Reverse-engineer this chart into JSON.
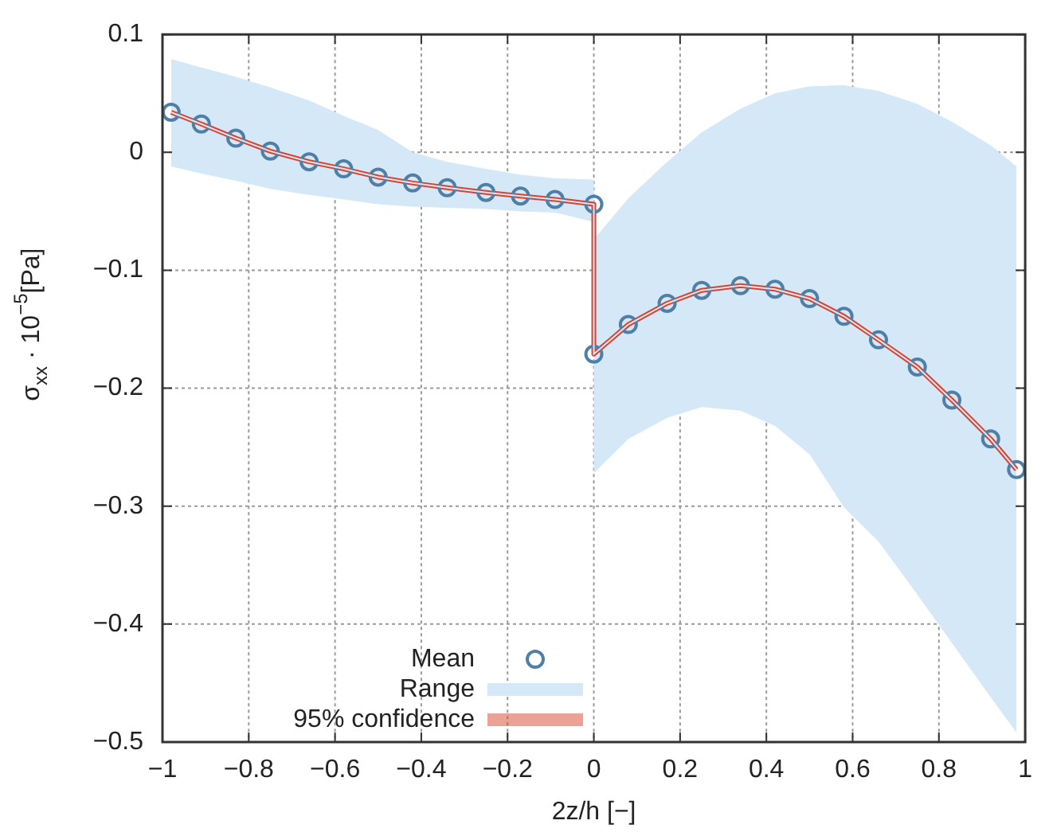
{
  "chart_data": {
    "type": "line",
    "xlabel": "2z/h [−]",
    "ylabel": "σ$_{xx}$ · 10$^{−5}$[Pa]",
    "xlim": [
      -1,
      1
    ],
    "ylim": [
      -0.5,
      0.1
    ],
    "xticks": [
      -1,
      -0.8,
      -0.6,
      -0.4,
      -0.2,
      0,
      0.2,
      0.4,
      0.6,
      0.8,
      1
    ],
    "yticks": [
      -0.5,
      -0.4,
      -0.3,
      -0.2,
      -0.1,
      0,
      0.1
    ],
    "grid": true,
    "legend": "bottom left",
    "x": [
      -0.98,
      -0.91,
      -0.83,
      -0.75,
      -0.66,
      -0.58,
      -0.5,
      -0.42,
      -0.34,
      -0.25,
      -0.17,
      -0.09,
      0,
      0,
      0.08,
      0.17,
      0.25,
      0.34,
      0.42,
      0.5,
      0.58,
      0.66,
      0.75,
      0.83,
      0.92,
      0.98
    ],
    "series": [
      {
        "name": "Mean",
        "type": "scatter",
        "marker": "circle",
        "color": "#4f7fa6",
        "values": [
          0.034,
          0.024,
          0.012,
          0.001,
          -0.008,
          -0.014,
          -0.021,
          -0.026,
          -0.03,
          -0.034,
          -0.037,
          -0.04,
          -0.044,
          -0.171,
          -0.146,
          -0.128,
          -0.117,
          -0.113,
          -0.116,
          -0.124,
          -0.139,
          -0.159,
          -0.182,
          -0.21,
          -0.243,
          -0.269
        ]
      },
      {
        "name": "Range",
        "type": "line",
        "color": "#d4e8f7",
        "values": [
          0.034,
          0.024,
          0.012,
          0.001,
          -0.008,
          -0.014,
          -0.021,
          -0.026,
          -0.03,
          -0.034,
          -0.037,
          -0.04,
          -0.044,
          -0.171,
          -0.146,
          -0.128,
          -0.117,
          -0.113,
          -0.116,
          -0.124,
          -0.139,
          -0.159,
          -0.182,
          -0.21,
          -0.243,
          -0.269
        ],
        "lower": [
          -0.012,
          -0.018,
          -0.024,
          -0.031,
          -0.036,
          -0.04,
          -0.044,
          -0.046,
          -0.047,
          -0.048,
          -0.05,
          -0.051,
          -0.059,
          -0.272,
          -0.243,
          -0.225,
          -0.216,
          -0.219,
          -0.232,
          -0.256,
          -0.301,
          -0.33,
          -0.375,
          -0.416,
          -0.462,
          -0.492
        ],
        "upper": [
          0.079,
          0.072,
          0.064,
          0.055,
          0.044,
          0.031,
          0.019,
          0,
          -0.008,
          -0.014,
          -0.019,
          -0.022,
          -0.023,
          -0.074,
          -0.039,
          -0.008,
          0.017,
          0.037,
          0.05,
          0.056,
          0.057,
          0.052,
          0.041,
          0.026,
          0.006,
          -0.012
        ]
      },
      {
        "name": "95% confidence",
        "type": "line",
        "color": "#d9432f",
        "values": [
          0.034,
          0.024,
          0.012,
          0.001,
          -0.008,
          -0.014,
          -0.021,
          -0.026,
          -0.03,
          -0.034,
          -0.037,
          -0.04,
          -0.044,
          -0.171,
          -0.146,
          -0.128,
          -0.117,
          -0.113,
          -0.116,
          -0.124,
          -0.139,
          -0.159,
          -0.182,
          -0.21,
          -0.243,
          -0.269
        ]
      }
    ]
  }
}
